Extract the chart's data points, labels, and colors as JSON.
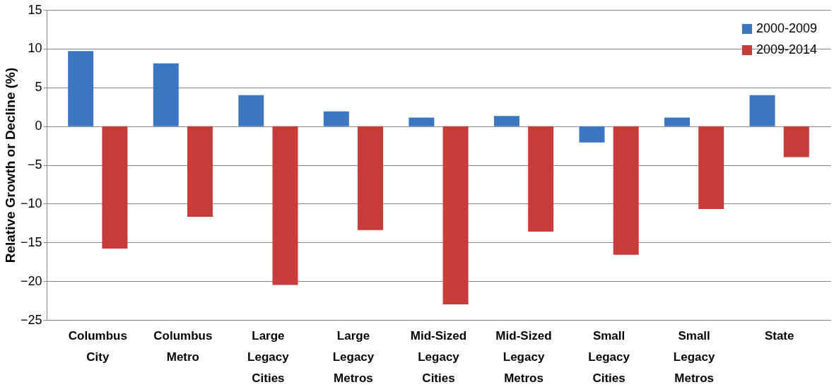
{
  "chart_data": {
    "type": "bar",
    "ylabel": "Relative Growth or Decline (%)",
    "categories": [
      "Columbus City",
      "Columbus Metro",
      "Large Legacy Cities",
      "Large Legacy Metros",
      "Mid-Sized Legacy Cities",
      "Mid-Sized Legacy Metros",
      "Small Legacy Cities",
      "Small Legacy Metros",
      "State"
    ],
    "series": [
      {
        "name": "2000-2009",
        "color": "#3d76c0",
        "values": [
          9.7,
          8.1,
          4.0,
          1.9,
          1.1,
          1.3,
          -2.1,
          1.1,
          4.0
        ]
      },
      {
        "name": "2009-2014",
        "color": "#c63c39",
        "values": [
          -15.8,
          -11.7,
          -20.5,
          -13.4,
          -23.0,
          -13.6,
          -16.6,
          -10.7,
          -4.0
        ]
      }
    ],
    "ylim": [
      -25,
      15
    ],
    "yticks": [
      -25,
      -20,
      -15,
      -10,
      -5,
      0,
      5,
      10,
      15
    ],
    "grid": "y",
    "legend": "top right"
  }
}
